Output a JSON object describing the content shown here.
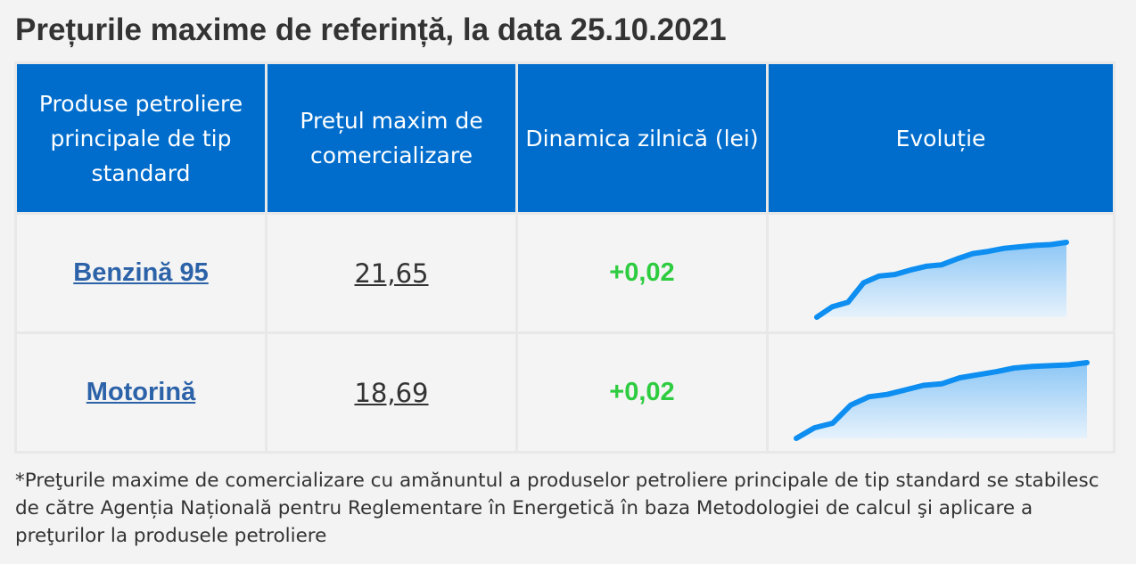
{
  "title": "Prețurile maxime de referință, la data 25.10.2021",
  "table": {
    "headers": {
      "product": "Produse petroliere principale de tip standard",
      "price": "Prețul maxim de comercializare",
      "change": "Dinamica zilnică (lei)",
      "evolution": "Evoluție"
    },
    "rows": [
      {
        "product": "Benzină 95",
        "price": "21,65",
        "change": "+0,02",
        "trend": [
          0.0,
          0.14,
          0.2,
          0.46,
          0.55,
          0.57,
          0.63,
          0.68,
          0.7,
          0.78,
          0.85,
          0.88,
          0.92,
          0.94,
          0.96,
          0.97,
          1.0
        ]
      },
      {
        "product": "Motorină",
        "price": "18,69",
        "change": "+0,02",
        "trend": [
          0.0,
          0.14,
          0.2,
          0.44,
          0.55,
          0.58,
          0.64,
          0.7,
          0.72,
          0.8,
          0.84,
          0.88,
          0.93,
          0.95,
          0.96,
          0.97,
          1.0
        ]
      }
    ]
  },
  "colors": {
    "header_bg": "#006dcc",
    "positive": "#2ecc40",
    "link": "#2b62a8",
    "spark_line": "#0d8ef0"
  },
  "footnote": "*Preţurile maxime de comercializare cu amănuntul a produselor petroliere principale de tip standard se stabilesc de către Agenția Națională pentru Reglementare în Energetică în baza Metodologiei de calcul şi aplicare a preţurilor la produsele petroliere"
}
